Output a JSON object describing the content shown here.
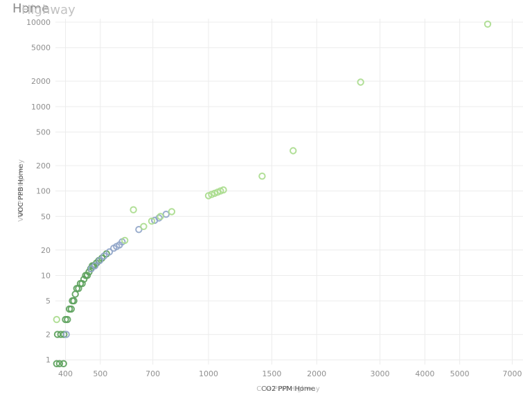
{
  "titles": [
    "Home",
    "Highway"
  ],
  "chart_data": {
    "type": "scatter",
    "xlabel": [
      "CO2 PPM Home",
      "CO2 PPM Highway"
    ],
    "ylabel": [
      "VOC PPB Home",
      "VOC PPB Highway"
    ],
    "x_scale": "log",
    "y_scale": "log",
    "xlim": [
      375,
      7500
    ],
    "ylim": [
      0.88,
      11000
    ],
    "x_ticks": [
      400,
      500,
      700,
      1000,
      1500,
      2000,
      3000,
      4000,
      5000,
      7000
    ],
    "y_ticks": [
      1,
      2,
      5,
      10,
      20,
      50,
      100,
      200,
      500,
      1000,
      2000,
      5000,
      10000
    ],
    "grid": true,
    "series": [
      {
        "color": "#5aa05a",
        "points": [
          [
            378,
            0.9
          ],
          [
            385,
            0.9
          ],
          [
            395,
            0.9
          ],
          [
            380,
            2
          ],
          [
            388,
            2
          ],
          [
            396,
            2
          ],
          [
            400,
            3
          ],
          [
            405,
            3
          ],
          [
            410,
            4
          ],
          [
            415,
            4
          ],
          [
            418,
            5
          ],
          [
            422,
            5
          ],
          [
            426,
            6
          ],
          [
            430,
            7
          ],
          [
            435,
            7
          ],
          [
            440,
            8
          ],
          [
            445,
            8
          ],
          [
            450,
            9
          ],
          [
            455,
            10
          ],
          [
            460,
            10
          ],
          [
            465,
            11
          ],
          [
            470,
            12
          ],
          [
            475,
            13
          ],
          [
            480,
            13
          ],
          [
            488,
            14
          ],
          [
            495,
            15
          ],
          [
            505,
            16
          ],
          [
            520,
            18
          ]
        ]
      },
      {
        "color": "#8fa4c8",
        "points": [
          [
            402,
            2
          ],
          [
            472,
            12
          ],
          [
            483,
            13
          ],
          [
            498,
            15
          ],
          [
            512,
            17
          ],
          [
            530,
            19
          ],
          [
            545,
            21
          ],
          [
            555,
            22
          ],
          [
            565,
            23
          ],
          [
            575,
            25
          ],
          [
            640,
            35
          ],
          [
            708,
            45
          ],
          [
            728,
            48
          ],
          [
            762,
            53
          ]
        ]
      },
      {
        "color": "#a8dc8c",
        "points": [
          [
            378,
            3
          ],
          [
            585,
            26
          ],
          [
            618,
            60
          ],
          [
            660,
            38
          ],
          [
            695,
            44
          ],
          [
            735,
            50
          ],
          [
            790,
            57
          ],
          [
            1000,
            88
          ],
          [
            1020,
            91
          ],
          [
            1040,
            94
          ],
          [
            1060,
            97
          ],
          [
            1080,
            100
          ],
          [
            1100,
            103
          ],
          [
            1410,
            150
          ],
          [
            1720,
            300
          ],
          [
            2650,
            1950
          ],
          [
            5980,
            9500
          ]
        ]
      }
    ]
  }
}
